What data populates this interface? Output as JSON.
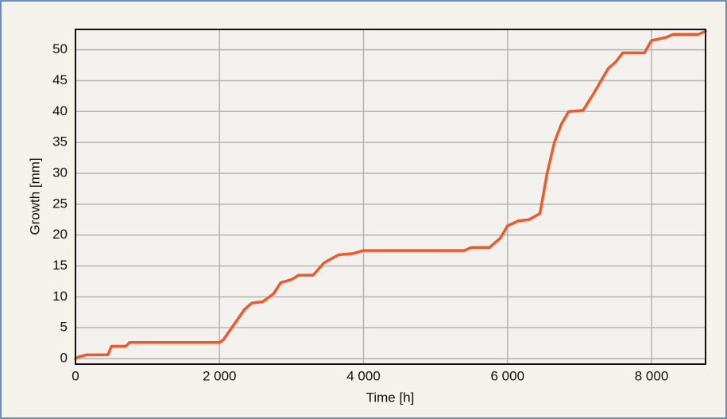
{
  "chart_data": {
    "type": "line",
    "xlabel": "Time [h]",
    "ylabel": "Growth [mm]",
    "x": [
      0,
      50,
      150,
      450,
      500,
      700,
      750,
      2000,
      2050,
      2200,
      2350,
      2450,
      2600,
      2750,
      2850,
      3000,
      3100,
      3300,
      3450,
      3650,
      3850,
      4000,
      5400,
      5500,
      5750,
      5900,
      6000,
      6150,
      6300,
      6450,
      6550,
      6650,
      6750,
      6850,
      7050,
      7200,
      7400,
      7500,
      7600,
      7900,
      8000,
      8200,
      8300,
      8650,
      8750
    ],
    "values": [
      0,
      0.3,
      0.6,
      0.6,
      2,
      2,
      2.6,
      2.6,
      3,
      5.5,
      8,
      9,
      9.2,
      10.5,
      12.3,
      12.8,
      13.5,
      13.5,
      15.5,
      16.8,
      17,
      17.5,
      17.5,
      18,
      18,
      19.5,
      21.5,
      22.3,
      22.5,
      23.5,
      30,
      35,
      38,
      40,
      40.2,
      43,
      47,
      48,
      49.5,
      49.5,
      51.5,
      52,
      52.5,
      52.5,
      53
    ],
    "color": "#f05a28",
    "xlim": [
      0,
      8750
    ],
    "ylim": [
      -0.9,
      53.3
    ],
    "xticks": [
      0,
      {
        "value": 2000,
        "label": "2 000"
      },
      {
        "value": 4000,
        "label": "4 000"
      },
      {
        "value": 6000,
        "label": "6 000"
      },
      {
        "value": 8000,
        "label": "8 000"
      }
    ],
    "yticks": [
      0,
      5,
      10,
      15,
      20,
      25,
      30,
      35,
      40,
      45,
      50
    ],
    "grid": true
  }
}
